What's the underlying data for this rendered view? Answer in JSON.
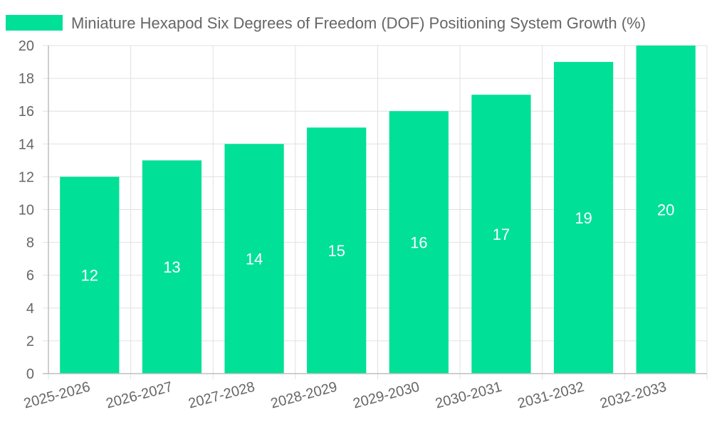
{
  "chart_data": {
    "type": "bar",
    "categories": [
      "2025-2026",
      "2026-2027",
      "2027-2028",
      "2028-2029",
      "2029-2030",
      "2030-2031",
      "2031-2032",
      "2032-2033"
    ],
    "series": [
      {
        "name": "Miniature Hexapod Six Degrees of Freedom (DOF) Positioning System Growth (%)",
        "values": [
          12,
          13,
          14,
          15,
          16,
          17,
          19,
          20
        ],
        "color": "#00e096"
      }
    ],
    "ylim": [
      0,
      20
    ],
    "yticks": [
      0,
      2,
      4,
      6,
      8,
      10,
      12,
      14,
      16,
      18,
      20
    ],
    "grid": true,
    "legend_position": "top",
    "data_labels": true,
    "label_color": "#ffffff"
  }
}
